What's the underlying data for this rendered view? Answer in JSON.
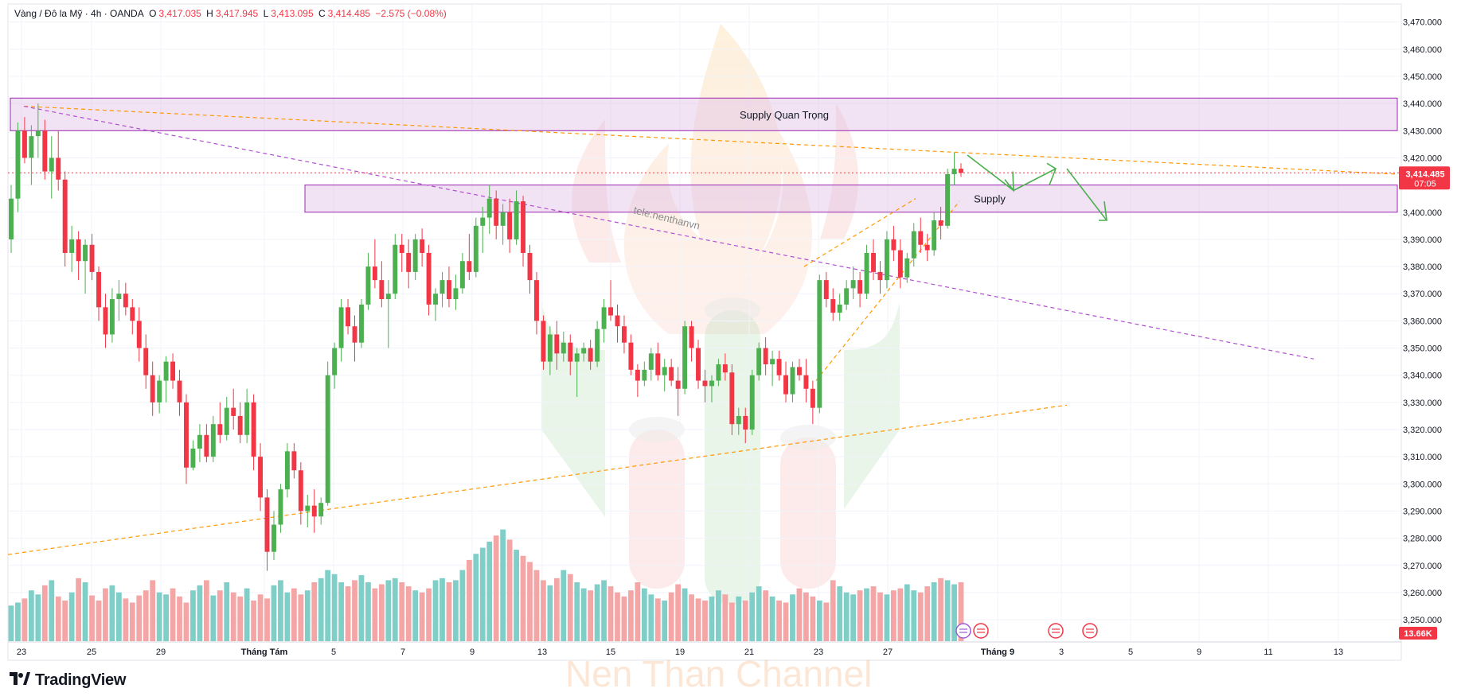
{
  "legend": {
    "symbol": "Vàng / Đô la Mỹ · 4h · OANDA",
    "o_label": "O",
    "o_value": "3,417.035",
    "h_label": "H",
    "h_value": "3,417.945",
    "l_label": "L",
    "l_value": "3,413.095",
    "c_label": "C",
    "c_value": "3,414.485",
    "change": "−2.575 (−0.08%)"
  },
  "price_tag": {
    "value": "3,414.485",
    "countdown": "07:05",
    "color": "#f23645"
  },
  "volume_tag": {
    "value": "13.66K",
    "color": "#f23645"
  },
  "brand": {
    "name": "TradingView",
    "watermark": "Nen Than Channel",
    "tele": "tele:nenthanvn"
  },
  "colors": {
    "up": "#4caf50",
    "down": "#f23645",
    "vol_up": "#7fcfc8",
    "vol_down": "#f4a6a6",
    "zone": "#9c27b0",
    "trend_orange": "#ff9800",
    "trend_purple": "#b04fcf"
  },
  "chart_data": {
    "type": "candlestick",
    "instrument": "Vàng / Đô la Mỹ",
    "timeframe": "4h",
    "y_axis": {
      "ticks": [
        3250,
        3260,
        3270,
        3280,
        3290,
        3300,
        3310,
        3320,
        3330,
        3340,
        3350,
        3360,
        3370,
        3380,
        3390,
        3400,
        3410,
        3420,
        3430,
        3440,
        3450,
        3460,
        3470
      ],
      "tick_labels": [
        "3,250.000",
        "3,260.000",
        "3,270.000",
        "3,280.000",
        "3,290.000",
        "3,300.000",
        "3,310.000",
        "3,320.000",
        "3,330.000",
        "3,340.000",
        "3,350.000",
        "3,360.000",
        "3,370.000",
        "3,380.000",
        "3,390.000",
        "3,400.000",
        "",
        "3,420.000",
        "3,430.000",
        "3,440.000",
        "3,450.000",
        "3,460.000",
        "3,470.000"
      ],
      "range": [
        3243,
        3474
      ]
    },
    "x_axis": {
      "tick_labels": [
        "23",
        "25",
        "29",
        "Tháng Tám",
        "5",
        "7",
        "9",
        "13",
        "15",
        "19",
        "21",
        "23",
        "27",
        "Tháng 9",
        "3",
        "5",
        "9",
        "11",
        "13"
      ]
    },
    "zones": [
      {
        "label": "Supply Quan Trọng",
        "low": 3430,
        "high": 3442
      },
      {
        "label": "Supply",
        "low": 3400,
        "high": 3410
      }
    ],
    "candles": [
      [
        3390,
        3410,
        3385,
        3405
      ],
      [
        3405,
        3433,
        3400,
        3430
      ],
      [
        3430,
        3435,
        3418,
        3420
      ],
      [
        3420,
        3432,
        3410,
        3428
      ],
      [
        3428,
        3440,
        3420,
        3430
      ],
      [
        3430,
        3434,
        3412,
        3415
      ],
      [
        3415,
        3428,
        3405,
        3420
      ],
      [
        3420,
        3430,
        3408,
        3412
      ],
      [
        3412,
        3415,
        3380,
        3385
      ],
      [
        3385,
        3395,
        3378,
        3390
      ],
      [
        3390,
        3393,
        3375,
        3382
      ],
      [
        3382,
        3390,
        3370,
        3388
      ],
      [
        3388,
        3392,
        3375,
        3378
      ],
      [
        3378,
        3380,
        3360,
        3365
      ],
      [
        3365,
        3370,
        3350,
        3355
      ],
      [
        3355,
        3372,
        3352,
        3368
      ],
      [
        3368,
        3375,
        3360,
        3370
      ],
      [
        3370,
        3374,
        3362,
        3365
      ],
      [
        3365,
        3368,
        3355,
        3360
      ],
      [
        3360,
        3365,
        3345,
        3350
      ],
      [
        3350,
        3355,
        3335,
        3340
      ],
      [
        3340,
        3345,
        3325,
        3330
      ],
      [
        3330,
        3340,
        3326,
        3338
      ],
      [
        3338,
        3347,
        3330,
        3345
      ],
      [
        3345,
        3348,
        3335,
        3338
      ],
      [
        3338,
        3342,
        3325,
        3330
      ],
      [
        3330,
        3333,
        3300,
        3306
      ],
      [
        3306,
        3316,
        3305,
        3313
      ],
      [
        3313,
        3322,
        3308,
        3318
      ],
      [
        3318,
        3322,
        3308,
        3310
      ],
      [
        3310,
        3325,
        3308,
        3322
      ],
      [
        3322,
        3330,
        3315,
        3318
      ],
      [
        3318,
        3332,
        3316,
        3328
      ],
      [
        3328,
        3335,
        3320,
        3325
      ],
      [
        3325,
        3330,
        3315,
        3318
      ],
      [
        3318,
        3335,
        3315,
        3330
      ],
      [
        3330,
        3333,
        3305,
        3310
      ],
      [
        3310,
        3315,
        3290,
        3295
      ],
      [
        3295,
        3298,
        3268,
        3275
      ],
      [
        3275,
        3290,
        3272,
        3285
      ],
      [
        3285,
        3300,
        3282,
        3298
      ],
      [
        3298,
        3315,
        3295,
        3312
      ],
      [
        3312,
        3315,
        3302,
        3305
      ],
      [
        3305,
        3308,
        3285,
        3290
      ],
      [
        3290,
        3296,
        3284,
        3292
      ],
      [
        3292,
        3298,
        3282,
        3288
      ],
      [
        3288,
        3295,
        3285,
        3293
      ],
      [
        3293,
        3345,
        3292,
        3340
      ],
      [
        3340,
        3352,
        3335,
        3350
      ],
      [
        3350,
        3368,
        3345,
        3365
      ],
      [
        3365,
        3368,
        3355,
        3358
      ],
      [
        3358,
        3362,
        3345,
        3352
      ],
      [
        3352,
        3368,
        3350,
        3366
      ],
      [
        3366,
        3385,
        3364,
        3380
      ],
      [
        3380,
        3390,
        3372,
        3375
      ],
      [
        3375,
        3382,
        3365,
        3368
      ],
      [
        3368,
        3375,
        3350,
        3370
      ],
      [
        3370,
        3392,
        3368,
        3388
      ],
      [
        3388,
        3392,
        3378,
        3385
      ],
      [
        3385,
        3390,
        3372,
        3378
      ],
      [
        3378,
        3392,
        3375,
        3390
      ],
      [
        3390,
        3394,
        3380,
        3385
      ],
      [
        3385,
        3388,
        3362,
        3366
      ],
      [
        3366,
        3372,
        3360,
        3370
      ],
      [
        3370,
        3378,
        3365,
        3375
      ],
      [
        3375,
        3380,
        3365,
        3368
      ],
      [
        3368,
        3377,
        3364,
        3372
      ],
      [
        3372,
        3385,
        3370,
        3382
      ],
      [
        3382,
        3392,
        3375,
        3378
      ],
      [
        3378,
        3398,
        3376,
        3395
      ],
      [
        3395,
        3402,
        3385,
        3398
      ],
      [
        3398,
        3410,
        3392,
        3405
      ],
      [
        3405,
        3408,
        3390,
        3395
      ],
      [
        3395,
        3403,
        3388,
        3400
      ],
      [
        3400,
        3405,
        3385,
        3390
      ],
      [
        3390,
        3408,
        3388,
        3404
      ],
      [
        3404,
        3406,
        3380,
        3385
      ],
      [
        3385,
        3388,
        3370,
        3375
      ],
      [
        3375,
        3378,
        3355,
        3360
      ],
      [
        3360,
        3362,
        3342,
        3345
      ],
      [
        3345,
        3358,
        3340,
        3355
      ],
      [
        3355,
        3360,
        3342,
        3348
      ],
      [
        3348,
        3356,
        3345,
        3352
      ],
      [
        3352,
        3355,
        3340,
        3345
      ],
      [
        3345,
        3350,
        3332,
        3348
      ],
      [
        3348,
        3352,
        3345,
        3350
      ],
      [
        3350,
        3353,
        3342,
        3345
      ],
      [
        3345,
        3360,
        3343,
        3357
      ],
      [
        3357,
        3368,
        3352,
        3365
      ],
      [
        3365,
        3375,
        3360,
        3362
      ],
      [
        3362,
        3366,
        3352,
        3358
      ],
      [
        3358,
        3362,
        3348,
        3352
      ],
      [
        3352,
        3355,
        3340,
        3342
      ],
      [
        3342,
        3344,
        3332,
        3338
      ],
      [
        3338,
        3345,
        3336,
        3342
      ],
      [
        3342,
        3350,
        3338,
        3348
      ],
      [
        3348,
        3352,
        3338,
        3340
      ],
      [
        3340,
        3346,
        3334,
        3343
      ],
      [
        3343,
        3346,
        3336,
        3338
      ],
      [
        3338,
        3343,
        3325,
        3335
      ],
      [
        3335,
        3360,
        3333,
        3358
      ],
      [
        3358,
        3360,
        3345,
        3350
      ],
      [
        3350,
        3353,
        3335,
        3338
      ],
      [
        3338,
        3342,
        3330,
        3336
      ],
      [
        3336,
        3340,
        3330,
        3338
      ],
      [
        3338,
        3346,
        3336,
        3344
      ],
      [
        3344,
        3348,
        3338,
        3341
      ],
      [
        3341,
        3344,
        3318,
        3322
      ],
      [
        3322,
        3328,
        3318,
        3325
      ],
      [
        3325,
        3328,
        3315,
        3320
      ],
      [
        3320,
        3342,
        3318,
        3340
      ],
      [
        3340,
        3352,
        3338,
        3350
      ],
      [
        3350,
        3354,
        3340,
        3344
      ],
      [
        3344,
        3349,
        3336,
        3346
      ],
      [
        3346,
        3349,
        3338,
        3340
      ],
      [
        3340,
        3345,
        3330,
        3333
      ],
      [
        3333,
        3345,
        3330,
        3343
      ],
      [
        3343,
        3346,
        3338,
        3340
      ],
      [
        3340,
        3346,
        3330,
        3335
      ],
      [
        3335,
        3338,
        3322,
        3328
      ],
      [
        3328,
        3377,
        3326,
        3375
      ],
      [
        3375,
        3378,
        3365,
        3368
      ],
      [
        3368,
        3372,
        3360,
        3363
      ],
      [
        3363,
        3370,
        3360,
        3366
      ],
      [
        3366,
        3375,
        3364,
        3372
      ],
      [
        3372,
        3380,
        3368,
        3375
      ],
      [
        3375,
        3378,
        3365,
        3370
      ],
      [
        3370,
        3388,
        3368,
        3385
      ],
      [
        3385,
        3390,
        3375,
        3378
      ],
      [
        3378,
        3382,
        3370,
        3375
      ],
      [
        3375,
        3393,
        3372,
        3390
      ],
      [
        3390,
        3395,
        3382,
        3386
      ],
      [
        3386,
        3390,
        3372,
        3376
      ],
      [
        3376,
        3385,
        3374,
        3383
      ],
      [
        3383,
        3396,
        3380,
        3393
      ],
      [
        3393,
        3398,
        3385,
        3388
      ],
      [
        3388,
        3392,
        3382,
        3386
      ],
      [
        3386,
        3400,
        3384,
        3397
      ],
      [
        3397,
        3402,
        3390,
        3395
      ],
      [
        3395,
        3416,
        3394,
        3414
      ],
      [
        3414,
        3422,
        3410,
        3416
      ],
      [
        3416,
        3418,
        3413,
        3414.485
      ]
    ],
    "volume": [
      35,
      38,
      42,
      50,
      46,
      55,
      60,
      44,
      40,
      48,
      62,
      58,
      45,
      40,
      52,
      55,
      48,
      42,
      38,
      45,
      50,
      60,
      48,
      46,
      52,
      44,
      38,
      50,
      55,
      60,
      45,
      50,
      58,
      48,
      44,
      52,
      40,
      46,
      42,
      55,
      60,
      48,
      52,
      46,
      50,
      58,
      62,
      70,
      66,
      58,
      54,
      60,
      65,
      58,
      52,
      56,
      60,
      62,
      58,
      54,
      50,
      48,
      52,
      60,
      62,
      58,
      60,
      70,
      80,
      86,
      92,
      98,
      104,
      110,
      100,
      90,
      84,
      78,
      70,
      60,
      55,
      62,
      70,
      66,
      58,
      52,
      50,
      56,
      60,
      54,
      48,
      44,
      50,
      58,
      52,
      46,
      42,
      40,
      48,
      56,
      52,
      46,
      42,
      40,
      44,
      50,
      46,
      38,
      44,
      40,
      48,
      54,
      50,
      44,
      40,
      38,
      46,
      52,
      48,
      44,
      40,
      38,
      60,
      54,
      48,
      46,
      50,
      52,
      54,
      48,
      46,
      50,
      52,
      56,
      50,
      48,
      54,
      58,
      62,
      60,
      56,
      58
    ]
  }
}
